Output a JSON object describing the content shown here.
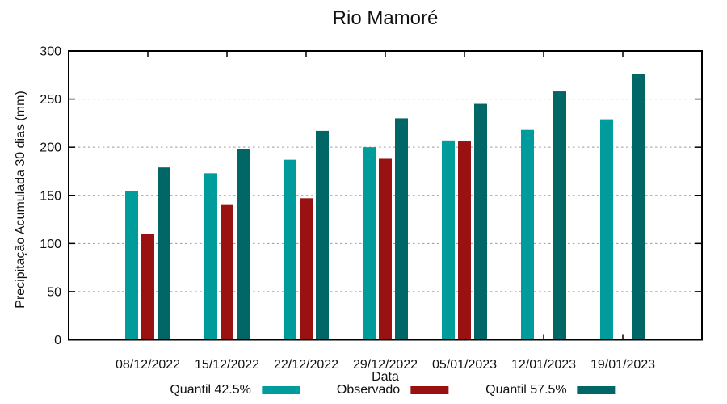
{
  "chart_data": {
    "type": "bar",
    "title": "Rio Mamoré",
    "xlabel": "Data",
    "ylabel": "Precipitação Acumulada 30 dias (mm)",
    "categories": [
      "08/12/2022",
      "15/12/2022",
      "22/12/2022",
      "29/12/2022",
      "05/01/2023",
      "12/01/2023",
      "19/01/2023"
    ],
    "series": [
      {
        "name": "Quantil 42.5%",
        "color": "#009C9C",
        "values": [
          154,
          173,
          187,
          200,
          207,
          218,
          229
        ]
      },
      {
        "name": "Observado",
        "color": "#991111",
        "values": [
          110,
          140,
          147,
          188,
          206,
          null,
          null
        ]
      },
      {
        "name": "Quantil 57.5%",
        "color": "#006666",
        "values": [
          179,
          198,
          217,
          230,
          245,
          258,
          276
        ]
      }
    ],
    "ylim": [
      0,
      300
    ],
    "ytick_step": 50,
    "grid": "horizontal-dashed",
    "legend_position": "bottom",
    "axis_color": "#000000",
    "grid_color": "#9a9a9a"
  }
}
